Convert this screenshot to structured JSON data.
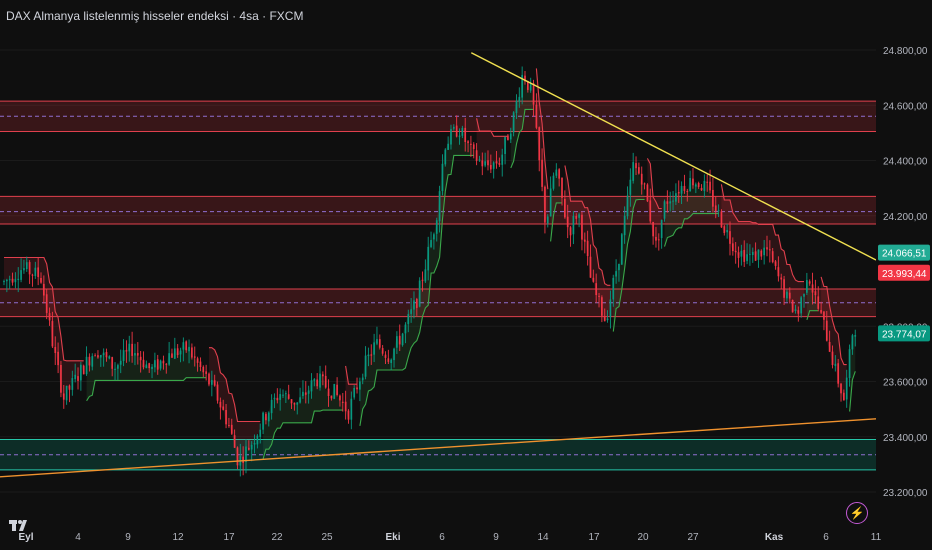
{
  "title": "DAX Almanya listelenmiş hisseler endeksi · 4sa · FXCM",
  "chart_data": {
    "type": "candlestick",
    "y_range": [
      23150,
      24900
    ],
    "y_ticks": [
      24800,
      24600,
      24400,
      24200,
      23800,
      23600,
      23400,
      23200
    ],
    "y_tick_labels": [
      "24.800,00",
      "24.600,00",
      "24.400,00",
      "24.200,00",
      "23.800,00",
      "23.600,00",
      "23.400,00",
      "23.200,00"
    ],
    "x_ticks": [
      "Eyl",
      "4",
      "9",
      "12",
      "17",
      "22",
      "25",
      "Eki",
      "6",
      "9",
      "14",
      "17",
      "20",
      "27",
      "Kas",
      "6",
      "11"
    ],
    "price_labels": [
      {
        "text": "24.066,51",
        "value": 24066.51,
        "color": "#22ab94"
      },
      {
        "text": "23.993,44",
        "value": 23993.44,
        "color": "#f23645"
      },
      {
        "text": "23.774,07",
        "value": 23774.07,
        "color": "#089981"
      }
    ],
    "resistance_zones": [
      {
        "from": 24505,
        "to": 24615,
        "mid": 24560
      },
      {
        "from": 24170,
        "to": 24270,
        "mid": 24215
      },
      {
        "from": 23835,
        "to": 23935,
        "mid": 23885
      }
    ],
    "support_zone": {
      "from": 23280,
      "to": 23390,
      "mid": 23335
    },
    "trendlines": [
      {
        "name": "descending",
        "color": "#f0e050",
        "from": [
          0.538,
          24790
        ],
        "to": [
          1.0,
          24040
        ]
      },
      {
        "name": "ascending",
        "color": "#f0922e",
        "from": [
          0.0,
          23255
        ],
        "to": [
          1.0,
          23465
        ]
      }
    ],
    "price_path": [
      [
        0.0,
        23960
      ],
      [
        0.02,
        24010
      ],
      [
        0.04,
        23980
      ],
      [
        0.055,
        23700
      ],
      [
        0.065,
        23540
      ],
      [
        0.08,
        23620
      ],
      [
        0.1,
        23720
      ],
      [
        0.12,
        23650
      ],
      [
        0.14,
        23720
      ],
      [
        0.16,
        23640
      ],
      [
        0.18,
        23700
      ],
      [
        0.2,
        23720
      ],
      [
        0.215,
        23640
      ],
      [
        0.23,
        23560
      ],
      [
        0.245,
        23440
      ],
      [
        0.255,
        23310
      ],
      [
        0.27,
        23380
      ],
      [
        0.285,
        23480
      ],
      [
        0.3,
        23560
      ],
      [
        0.32,
        23520
      ],
      [
        0.34,
        23610
      ],
      [
        0.36,
        23560
      ],
      [
        0.375,
        23490
      ],
      [
        0.39,
        23640
      ],
      [
        0.405,
        23740
      ],
      [
        0.42,
        23690
      ],
      [
        0.435,
        23780
      ],
      [
        0.45,
        23900
      ],
      [
        0.47,
        24180
      ],
      [
        0.48,
        24460
      ],
      [
        0.495,
        24520
      ],
      [
        0.51,
        24420
      ],
      [
        0.525,
        24380
      ],
      [
        0.54,
        24400
      ],
      [
        0.555,
        24560
      ],
      [
        0.565,
        24720
      ],
      [
        0.575,
        24640
      ],
      [
        0.59,
        24160
      ],
      [
        0.6,
        24380
      ],
      [
        0.615,
        24140
      ],
      [
        0.625,
        24220
      ],
      [
        0.64,
        23950
      ],
      [
        0.655,
        23820
      ],
      [
        0.67,
        24060
      ],
      [
        0.685,
        24380
      ],
      [
        0.695,
        24340
      ],
      [
        0.71,
        24090
      ],
      [
        0.72,
        24250
      ],
      [
        0.735,
        24300
      ],
      [
        0.75,
        24330
      ],
      [
        0.765,
        24300
      ],
      [
        0.78,
        24190
      ],
      [
        0.79,
        24120
      ],
      [
        0.8,
        24070
      ],
      [
        0.815,
        24050
      ],
      [
        0.83,
        24080
      ],
      [
        0.845,
        23960
      ],
      [
        0.855,
        23880
      ],
      [
        0.865,
        23850
      ],
      [
        0.875,
        24000
      ],
      [
        0.885,
        23880
      ],
      [
        0.895,
        23780
      ],
      [
        0.905,
        23640
      ],
      [
        0.915,
        23530
      ],
      [
        0.925,
        23810
      ],
      [
        0.93,
        23774
      ]
    ]
  }
}
